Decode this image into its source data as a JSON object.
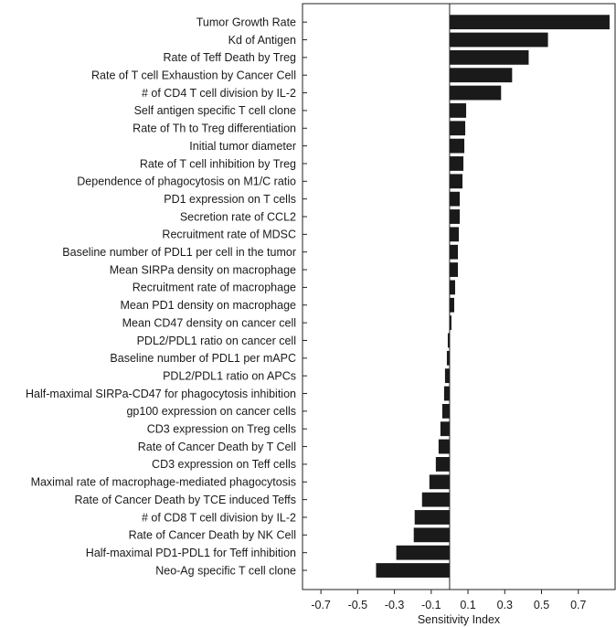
{
  "chart_data": {
    "type": "bar",
    "orientation": "horizontal",
    "xlabel": "Sensitivity Index",
    "ylabel": "",
    "title": "",
    "xlim": [
      -0.8,
      0.9
    ],
    "xticks": [
      -0.7,
      -0.5,
      -0.3,
      -0.1,
      0.1,
      0.3,
      0.5,
      0.7
    ],
    "xtick_labels": [
      "-0.7",
      "-0.5",
      "-0.3",
      "-0.1",
      "0.1",
      "0.3",
      "0.5",
      "0.7"
    ],
    "bar_color": "#1a1a1a",
    "zero_line": true,
    "categories": [
      "Tumor Growth Rate",
      "Kd of Antigen",
      "Rate of Teff Death by Treg",
      "Rate of T cell Exhaustion by Cancer Cell",
      "# of CD4 T cell division by IL-2",
      "Self antigen specific T cell clone",
      "Rate of Th to Treg differentiation",
      "Initial tumor diameter",
      "Rate of T cell inhibition by Treg",
      "Dependence of phagocytosis on M1/C ratio",
      "PD1 expression on T cells",
      "Secretion rate of CCL2",
      "Recruitment rate of MDSC",
      "Baseline number of PDL1 per cell in the tumor",
      "Mean SIRPa density on macrophage",
      "Recruitment rate of macrophage",
      "Mean PD1 density on macrophage",
      "Mean CD47 density on cancer cell",
      "PDL2/PDL1 ratio on cancer cell",
      "Baseline number of PDL1 per mAPC",
      "PDL2/PDL1 ratio on APCs",
      "Half-maximal SIRPa-CD47 for phagocytosis inhibition",
      "gp100 expression on cancer cells",
      "CD3 expression on Treg cells",
      "Rate of Cancer Death by T Cell",
      "CD3 expression on Teff cells",
      "Maximal rate of macrophage-mediated phagocytosis",
      "Rate of Cancer Death by TCE induced Teffs",
      "# of CD8 T cell division by IL-2",
      "Rate of Cancer Death by NK Cell",
      "Half-maximal PD1-PDL1 for Teff inhibition",
      "Neo-Ag specific T cell clone"
    ],
    "values": [
      0.87,
      0.535,
      0.43,
      0.34,
      0.28,
      0.09,
      0.085,
      0.08,
      0.075,
      0.07,
      0.055,
      0.055,
      0.05,
      0.045,
      0.045,
      0.03,
      0.025,
      0.01,
      -0.01,
      -0.015,
      -0.025,
      -0.03,
      -0.04,
      -0.05,
      -0.06,
      -0.075,
      -0.11,
      -0.15,
      -0.19,
      -0.195,
      -0.29,
      -0.4
    ]
  }
}
